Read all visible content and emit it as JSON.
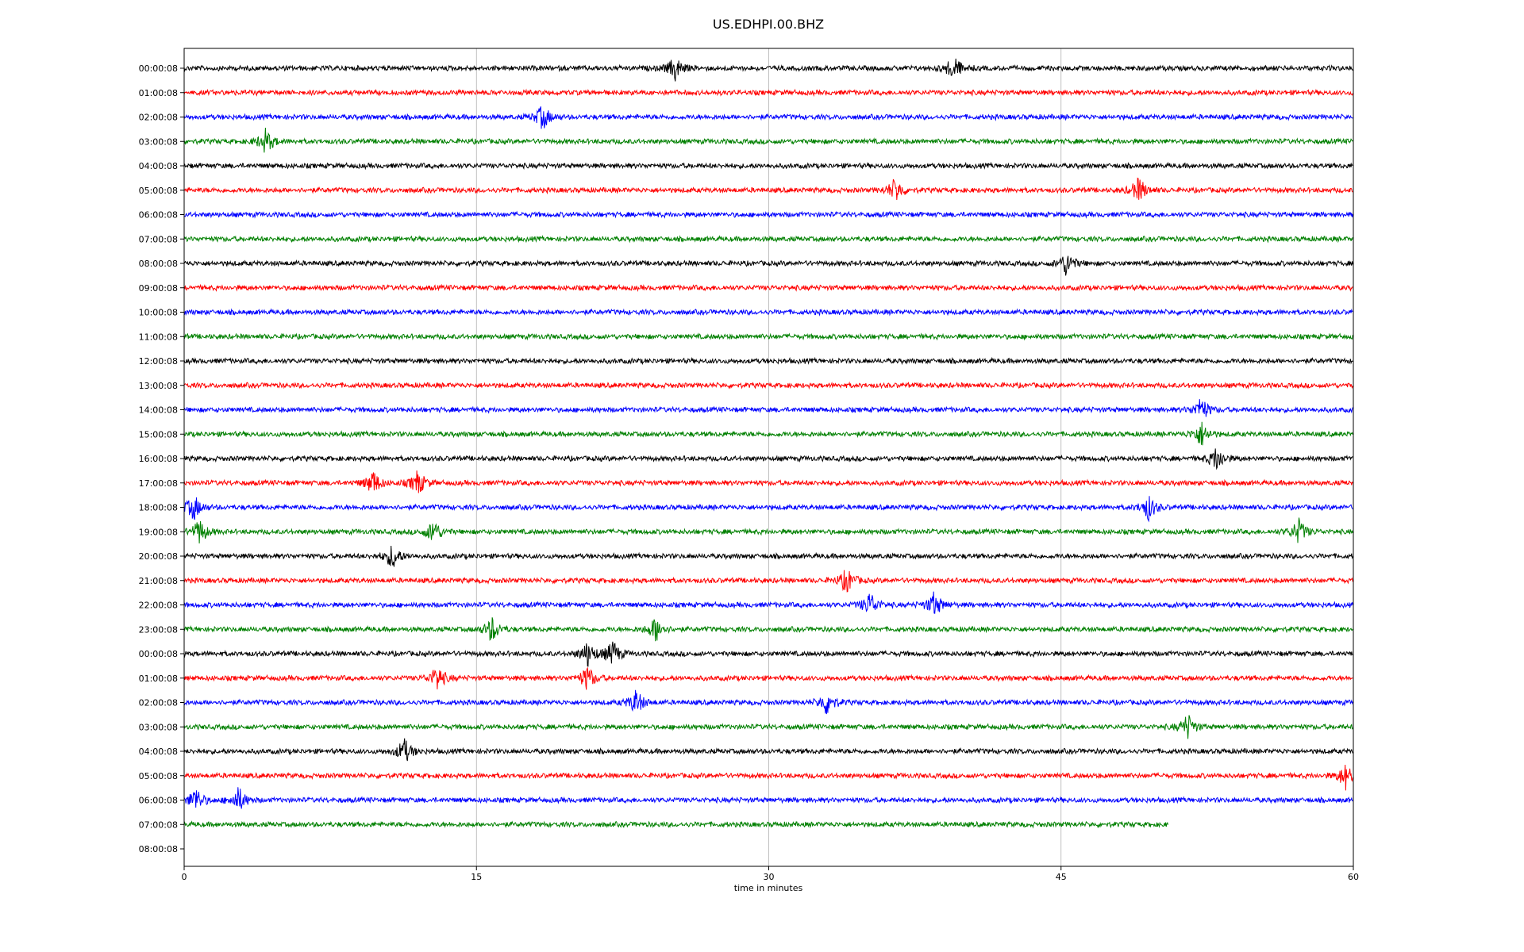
{
  "chart_data": {
    "type": "line",
    "title": "US.EDHPI.00.BHZ",
    "xlabel": "time in minutes",
    "ylabel": "",
    "xlim": [
      0,
      60
    ],
    "x_ticks": [
      "0",
      "15",
      "30",
      "45",
      "60"
    ],
    "grid": "vertical gridlines at 15, 30, 45",
    "legend": "none",
    "color_cycle": [
      "#000000",
      "#ff0000",
      "#0000ff",
      "#008000"
    ],
    "row_labels": [
      "00:00:08",
      "01:00:08",
      "02:00:08",
      "03:00:08",
      "04:00:08",
      "05:00:08",
      "06:00:08",
      "07:00:08",
      "08:00:08",
      "09:00:08",
      "10:00:08",
      "11:00:08",
      "12:00:08",
      "13:00:08",
      "14:00:08",
      "15:00:08",
      "16:00:08",
      "17:00:08",
      "18:00:08",
      "19:00:08",
      "20:00:08",
      "21:00:08",
      "22:00:08",
      "23:00:08",
      "00:00:08",
      "01:00:08",
      "02:00:08",
      "03:00:08",
      "04:00:08",
      "05:00:08",
      "06:00:08",
      "07:00:08",
      "08:00:08"
    ],
    "last_trace_end_minute": 50.5,
    "notable_events": [
      {
        "row": 0,
        "minute": 39.5
      },
      {
        "row": 0,
        "minute": 25.2
      },
      {
        "row": 2,
        "minute": 18.4
      },
      {
        "row": 3,
        "minute": 4.2
      },
      {
        "row": 5,
        "minute": 36.5
      },
      {
        "row": 5,
        "minute": 49.0
      },
      {
        "row": 8,
        "minute": 45.3
      },
      {
        "row": 14,
        "minute": 52.2
      },
      {
        "row": 15,
        "minute": 52.2
      },
      {
        "row": 16,
        "minute": 53.0
      },
      {
        "row": 17,
        "minute": 12.0
      },
      {
        "row": 17,
        "minute": 9.7
      },
      {
        "row": 18,
        "minute": 0.5
      },
      {
        "row": 18,
        "minute": 49.5
      },
      {
        "row": 19,
        "minute": 0.8
      },
      {
        "row": 19,
        "minute": 12.8
      },
      {
        "row": 19,
        "minute": 57.2
      },
      {
        "row": 20,
        "minute": 10.7
      },
      {
        "row": 21,
        "minute": 34.0
      },
      {
        "row": 22,
        "minute": 35.2
      },
      {
        "row": 22,
        "minute": 38.5
      },
      {
        "row": 23,
        "minute": 15.8
      },
      {
        "row": 23,
        "minute": 24.2
      },
      {
        "row": 24,
        "minute": 20.7
      },
      {
        "row": 24,
        "minute": 22.0
      },
      {
        "row": 25,
        "minute": 13.0
      },
      {
        "row": 25,
        "minute": 20.7
      },
      {
        "row": 26,
        "minute": 23.2
      },
      {
        "row": 26,
        "minute": 33.0
      },
      {
        "row": 27,
        "minute": 51.5
      },
      {
        "row": 28,
        "minute": 11.3
      },
      {
        "row": 29,
        "minute": 59.6
      },
      {
        "row": 30,
        "minute": 0.6
      },
      {
        "row": 30,
        "minute": 2.8
      }
    ]
  }
}
